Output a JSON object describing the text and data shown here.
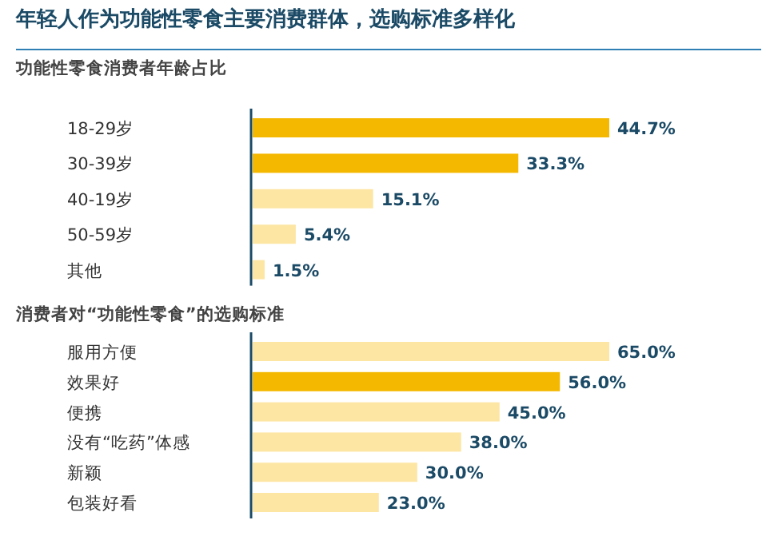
{
  "chart_data": [
    {
      "type": "bar",
      "orientation": "horizontal",
      "title": "年轻人作为功能性零食主要消费群体，选购标准多样化",
      "subtitle": "功能性零食消费者年龄占比",
      "categories": [
        "18-29岁",
        "30-39岁",
        "40-19岁",
        "50-59岁",
        "其他"
      ],
      "values": [
        44.7,
        33.3,
        15.1,
        5.4,
        1.5
      ],
      "colors": [
        "#f5b800",
        "#f5b800",
        "#fde6a4",
        "#fde6a4",
        "#fde6a4"
      ],
      "value_labels": [
        "44.7%",
        "33.3%",
        "15.1%",
        "5.4%",
        "1.5%"
      ]
    },
    {
      "type": "bar",
      "orientation": "horizontal",
      "title": "消费者对“功能性零食”的选购标准",
      "categories": [
        "服用方便",
        "效果好",
        "便携",
        "没有“吃药”体感",
        "新颖",
        "包装好看"
      ],
      "values": [
        65.0,
        56.0,
        45.0,
        38.0,
        30.0,
        23.0
      ],
      "colors": [
        "#fde6a4",
        "#f5b800",
        "#fde6a4",
        "#fde6a4",
        "#fde6a4",
        "#fde6a4"
      ],
      "value_labels": [
        "65.0%",
        "56.0%",
        "45.0%",
        "38.0%",
        "30.0%",
        "23.0%"
      ]
    }
  ]
}
